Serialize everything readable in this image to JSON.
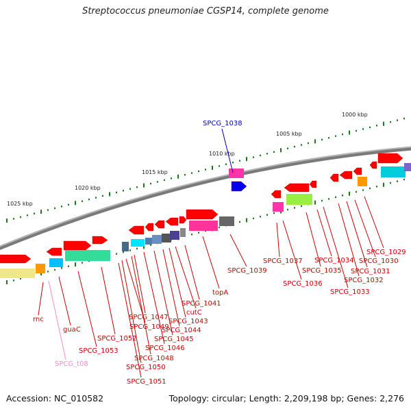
{
  "title": "Streptococcus pneumoniae CGSP14, complete genome",
  "footer": {
    "accession": "Accession: NC_010582",
    "summary": "Topology: circular; Length: 2,209,198 bp; Genes: 2,276"
  },
  "colors": {
    "gene_forward": "#ff0000",
    "label_default": "#cc0000",
    "label_highlight": "#0000cc",
    "label_trna": "#ff88cc",
    "backbone": "#888888",
    "ticks": "#1a7a1a"
  },
  "tick_labels": [
    "1000 kbp",
    "1005 kbp",
    "1010 kbp",
    "1015 kbp",
    "1020 kbp",
    "1025 kbp"
  ],
  "genes": [
    {
      "label": "SPCG_1038",
      "color": "blue"
    },
    {
      "label": "SPCG_1029",
      "color": "red"
    },
    {
      "label": "SPCG_1030",
      "color": "red"
    },
    {
      "label": "SPCG_1031",
      "color": "red"
    },
    {
      "label": "SPCG_1032",
      "color": "red"
    },
    {
      "label": "SPCG_1033",
      "color": "red"
    },
    {
      "label": "SPCG_1034",
      "color": "red"
    },
    {
      "label": "SPCG_1035",
      "color": "red"
    },
    {
      "label": "SPCG_1036",
      "color": "red"
    },
    {
      "label": "SPCG_1037",
      "color": "red"
    },
    {
      "label": "SPCG_1039",
      "color": "red"
    },
    {
      "label": "topA",
      "color": "red"
    },
    {
      "label": "SPCG_1041",
      "color": "red"
    },
    {
      "label": "cutC",
      "color": "red"
    },
    {
      "label": "SPCG_1043",
      "color": "red"
    },
    {
      "label": "SPCG_1044",
      "color": "red"
    },
    {
      "label": "SPCG_1045",
      "color": "red"
    },
    {
      "label": "SPCG_1046",
      "color": "red"
    },
    {
      "label": "SPCG_1047",
      "color": "red"
    },
    {
      "label": "SPCG_1048",
      "color": "red"
    },
    {
      "label": "SPCG_1049",
      "color": "red"
    },
    {
      "label": "SPCG_1050",
      "color": "red"
    },
    {
      "label": "SPCG_1051",
      "color": "red"
    },
    {
      "label": "SPCG_1052",
      "color": "red"
    },
    {
      "label": "SPCG_1053",
      "color": "red"
    },
    {
      "label": "guaC",
      "color": "red"
    },
    {
      "label": "rnc",
      "color": "red"
    },
    {
      "label": "SPCG_t08",
      "color": "pink"
    }
  ]
}
